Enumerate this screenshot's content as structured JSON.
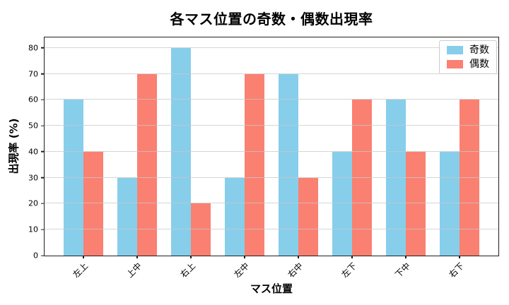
{
  "title": "各マス位置の奇数・偶数出現率",
  "chart_data": {
    "type": "bar",
    "title": "各マス位置の奇数・偶数出現率",
    "xlabel": "マス位置",
    "ylabel": "出現率 (%)",
    "categories": [
      "左上",
      "上中",
      "右上",
      "左中",
      "右中",
      "左下",
      "下中",
      "右下"
    ],
    "series": [
      {
        "name": "奇数",
        "color": "#87CEEB",
        "values": [
          60,
          30,
          80,
          30,
          70,
          40,
          60,
          40
        ]
      },
      {
        "name": "偶数",
        "color": "#FA8072",
        "values": [
          40,
          70,
          20,
          70,
          30,
          60,
          40,
          60
        ]
      }
    ],
    "ylim": [
      0,
      84
    ],
    "yticks": [
      0,
      10,
      20,
      30,
      40,
      50,
      60,
      70,
      80
    ],
    "grid": true,
    "grid_color": "#c8c8c8",
    "spine_color": "#1f1f1f",
    "legend_position": "upper right",
    "x_tick_rotation": 45
  }
}
